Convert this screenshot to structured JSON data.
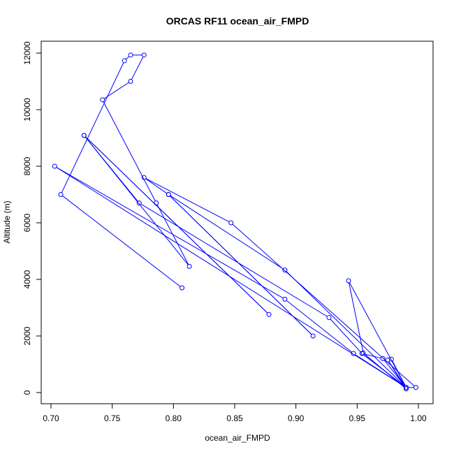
{
  "chart_data": {
    "type": "line",
    "title": "ORCAS RF11 ocean_air_FMPD",
    "xlabel": "ocean_air_FMPD",
    "ylabel": "Altitude (m)",
    "xlim": [
      0.7,
      1.0
    ],
    "ylim": [
      0,
      12000
    ],
    "x_ticks": [
      "0.70",
      "0.75",
      "0.80",
      "0.85",
      "0.90",
      "0.95",
      "1.00"
    ],
    "y_ticks": [
      "0",
      "2000",
      "4000",
      "6000",
      "8000",
      "10000",
      "12000"
    ],
    "grid": false,
    "legend": "none",
    "line_color": "#0000ff",
    "series": [
      {
        "x": [
          0.807,
          0.708,
          0.76,
          0.765,
          0.776,
          0.765,
          0.742,
          0.786,
          0.813,
          0.727,
          0.878,
          0.727,
          0.772,
          0.927,
          0.954,
          0.971,
          0.99,
          0.947,
          0.891,
          0.703,
          0.99,
          0.891,
          0.796,
          0.914,
          0.796,
          0.776,
          0.847,
          0.998,
          0.99,
          0.978,
          0.99,
          0.943,
          0.955,
          0.99,
          0.975,
          0.99,
          0.954,
          0.99
        ],
        "y": [
          3700,
          7000,
          11730,
          11930,
          11930,
          11000,
          10350,
          6700,
          4460,
          9090,
          2760,
          9090,
          6700,
          2650,
          1380,
          1200,
          180,
          1380,
          3300,
          8000,
          180,
          4330,
          7000,
          2000,
          7000,
          7600,
          6000,
          180,
          180,
          1180,
          180,
          3950,
          1400,
          130,
          1150,
          180,
          1380,
          180
        ]
      }
    ]
  }
}
